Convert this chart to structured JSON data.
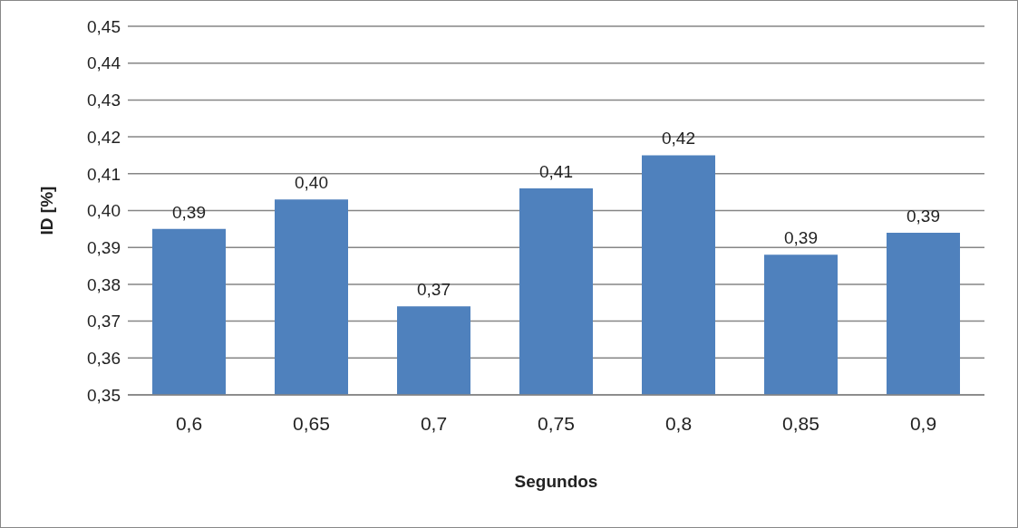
{
  "chart_data": {
    "type": "bar",
    "xlabel": "Segundos",
    "ylabel": "ID [%]",
    "categories": [
      "0,6",
      "0,65",
      "0,7",
      "0,75",
      "0,8",
      "0,85",
      "0,9"
    ],
    "values": [
      0.395,
      0.403,
      0.374,
      0.406,
      0.415,
      0.388,
      0.394
    ],
    "value_labels": [
      "0,39",
      "0,40",
      "0,37",
      "0,41",
      "0,42",
      "0,39",
      "0,39"
    ],
    "color": "#4f81bd",
    "ylim": [
      0.35,
      0.45
    ],
    "yticks": [
      {
        "value": 0.35,
        "label": "0,35"
      },
      {
        "value": 0.36,
        "label": "0,36"
      },
      {
        "value": 0.37,
        "label": "0,37"
      },
      {
        "value": 0.38,
        "label": "0,38"
      },
      {
        "value": 0.39,
        "label": "0,39"
      },
      {
        "value": 0.4,
        "label": "0,40"
      },
      {
        "value": 0.41,
        "label": "0,41"
      },
      {
        "value": 0.42,
        "label": "0,42"
      },
      {
        "value": 0.43,
        "label": "0,43"
      },
      {
        "value": 0.44,
        "label": "0,44"
      },
      {
        "value": 0.45,
        "label": "0,45"
      }
    ],
    "grid": "y",
    "legend": false
  }
}
